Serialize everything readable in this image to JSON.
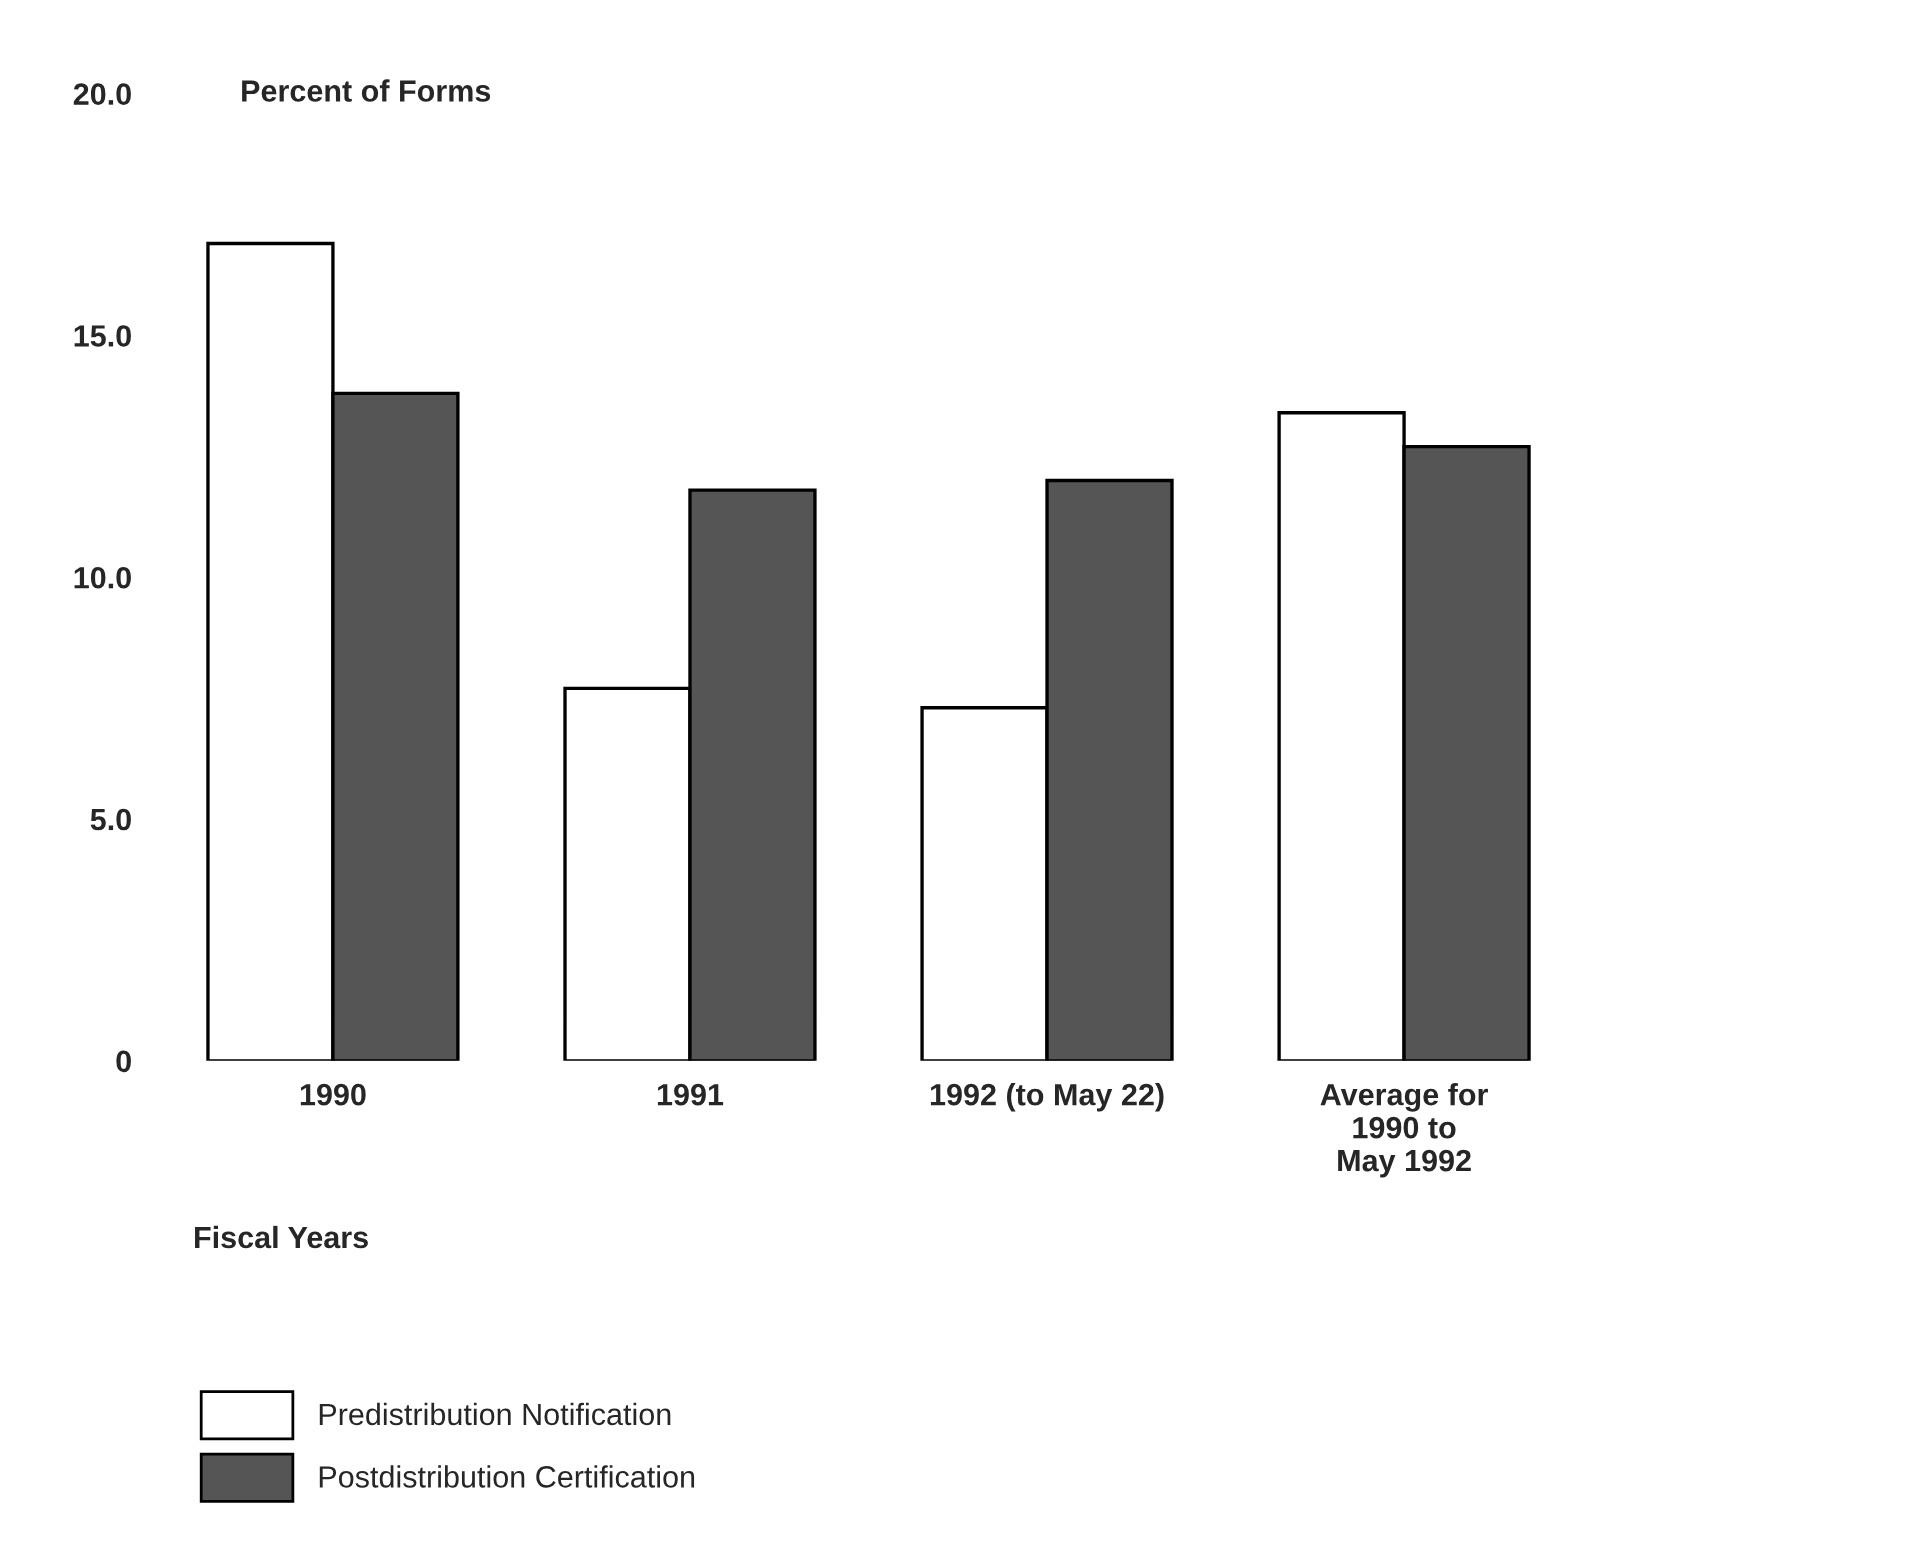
{
  "chart_data": {
    "type": "bar",
    "ylabel": "Percent of Forms",
    "xlabel": "Fiscal Years",
    "categories": [
      "1990",
      "1991",
      "1992 (to May 22)",
      "Average for\n1990 to\nMay 1992"
    ],
    "series": [
      {
        "name": "Predistribution Notification",
        "color": "#ffffff",
        "values": [
          16.9,
          7.7,
          7.3,
          13.4
        ]
      },
      {
        "name": "Postdistribution Certification",
        "color": "#555555",
        "values": [
          13.8,
          11.8,
          12.0,
          12.7
        ]
      }
    ],
    "ylim": [
      0,
      20
    ],
    "yticks": [
      {
        "value": 0,
        "label": "0"
      },
      {
        "value": 5,
        "label": "5.0"
      },
      {
        "value": 10,
        "label": "10.0"
      },
      {
        "value": 15,
        "label": "15.0"
      },
      {
        "value": 20,
        "label": "20.0"
      }
    ],
    "grid": false,
    "legend": "bottom left"
  }
}
